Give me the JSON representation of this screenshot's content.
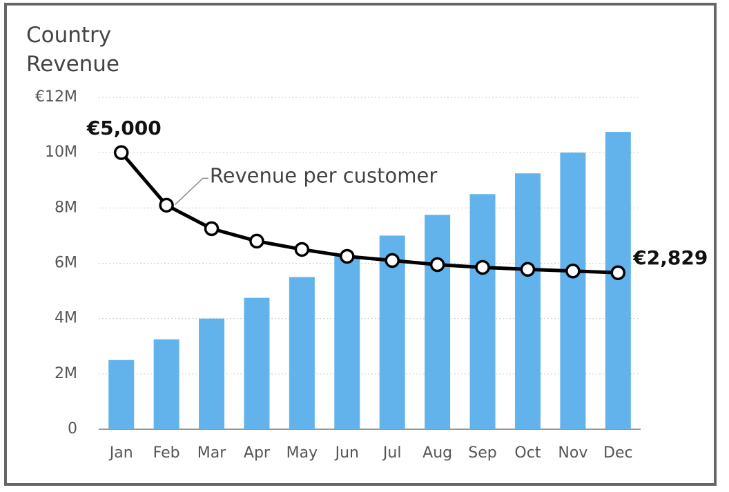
{
  "chart_data": {
    "type": "bar",
    "title": "Country Revenue",
    "categories": [
      "Jan",
      "Feb",
      "Mar",
      "Apr",
      "May",
      "Jun",
      "Jul",
      "Aug",
      "Sep",
      "Oct",
      "Nov",
      "Dec"
    ],
    "series": [
      {
        "name": "Country Revenue",
        "type": "bar",
        "color": "#62b3eb",
        "values": [
          2.5,
          3.25,
          4.0,
          4.75,
          5.5,
          6.25,
          7.0,
          7.75,
          8.5,
          9.25,
          10.0,
          10.75
        ]
      },
      {
        "name": "Revenue per customer",
        "type": "line",
        "axis": "y2",
        "color": "#000000",
        "values": [
          5000,
          4050,
          3625,
          3400,
          3250,
          3125,
          3050,
          2975,
          2925,
          2890,
          2860,
          2829
        ],
        "value_labels": [
          "€5,000",
          null,
          null,
          null,
          null,
          null,
          null,
          null,
          null,
          null,
          null,
          "€2,829"
        ]
      }
    ],
    "ylim": [
      0,
      12
    ],
    "yticks": [
      0,
      {
        "value": 2,
        "label": "2M"
      },
      {
        "value": 4,
        "label": "4M"
      },
      {
        "value": 6,
        "label": "6M"
      },
      {
        "value": 8,
        "label": "8M"
      },
      {
        "value": 10,
        "label": "10M"
      },
      {
        "value": 12,
        "label": "€12M"
      }
    ],
    "y2lim": [
      0,
      6000
    ],
    "grid": true
  }
}
